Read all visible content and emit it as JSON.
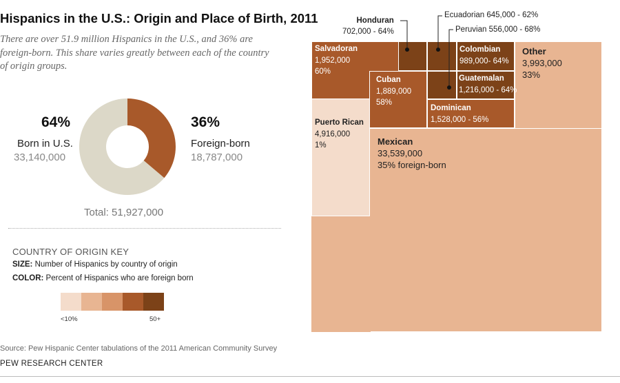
{
  "title": "Hispanics in the U.S.: Origin and Place of Birth, 2011",
  "subtitle": "There are over 51.9 million Hispanics in the U.S., and 36% are foreign-born.  This share varies greatly between each of the country of origin groups.",
  "donut": {
    "born_pct": "64%",
    "born_label": "Born in U.S.",
    "born_count": "33,140,000",
    "foreign_pct": "36%",
    "foreign_label": "Foreign-born",
    "foreign_count": "18,787,000",
    "total": "Total: 51,927,000"
  },
  "key": {
    "heading": "COUNTRY OF ORIGIN KEY",
    "size_term": "SIZE:",
    "size_desc": " Number of Hispanics by country of origin",
    "color_term": "COLOR:",
    "color_desc": " Percent of Hispanics who are foreign born",
    "scale_low": "<10%",
    "scale_high": "50+"
  },
  "source": "Source: Pew Hispanic Center tabulations of the 2011 American Community Survey",
  "brand": "PEW RESEARCH CENTER",
  "colors": {
    "born": "#dcd8c8",
    "foreign": "#a8592a",
    "scale": [
      "#f4dccb",
      "#e8b592",
      "#d89468",
      "#a8592a",
      "#7c4218"
    ]
  },
  "chart_data": [
    {
      "type": "pie",
      "categories": [
        "Born in U.S.",
        "Foreign-born"
      ],
      "values": [
        33140000,
        18787000
      ],
      "percent": [
        64,
        36
      ],
      "total": 51927000
    },
    {
      "type": "treemap",
      "size_measure": "Number of Hispanics by country of origin",
      "color_measure": "Percent of Hispanics who are foreign born",
      "items": [
        {
          "name": "Mexican",
          "count": "33,539,000",
          "value": 33539000,
          "foreign_label": "35% foreign-born",
          "foreign_born_pct": 35
        },
        {
          "name": "Puerto Rican",
          "count": "4,916,000",
          "value": 4916000,
          "foreign_label": "1%",
          "foreign_born_pct": 1
        },
        {
          "name": "Other",
          "count": "3,993,000",
          "value": 3993000,
          "foreign_label": "33%",
          "foreign_born_pct": 33
        },
        {
          "name": "Salvadoran",
          "count": "1,952,000",
          "value": 1952000,
          "foreign_label": "60%",
          "foreign_born_pct": 60
        },
        {
          "name": "Cuban",
          "count": "1,889,000",
          "value": 1889000,
          "foreign_label": "58%",
          "foreign_born_pct": 58
        },
        {
          "name": "Dominican",
          "count": "1,528,000",
          "value": 1528000,
          "foreign_label": "56%",
          "foreign_born_pct": 56,
          "line": "1,528,000 - 56%"
        },
        {
          "name": "Guatemalan",
          "count": "1,216,000",
          "value": 1216000,
          "foreign_label": "64%",
          "foreign_born_pct": 64,
          "line": "1,216,000 - 64%"
        },
        {
          "name": "Colombian",
          "count": "989,000",
          "value": 989000,
          "foreign_label": "64%",
          "foreign_born_pct": 64,
          "line": "989,000- 64%"
        },
        {
          "name": "Honduran",
          "count": "702,000",
          "value": 702000,
          "foreign_label": "64%",
          "foreign_born_pct": 64,
          "line": "702,000 - 64%"
        },
        {
          "name": "Ecuadorian",
          "count": "645,000",
          "value": 645000,
          "foreign_label": "62%",
          "foreign_born_pct": 62,
          "line": "Ecuadorian 645,000 - 62%"
        },
        {
          "name": "Peruvian",
          "count": "556,000",
          "value": 556000,
          "foreign_label": "68%",
          "foreign_born_pct": 68,
          "line": "Peruvian 556,000 - 68%"
        }
      ]
    }
  ]
}
